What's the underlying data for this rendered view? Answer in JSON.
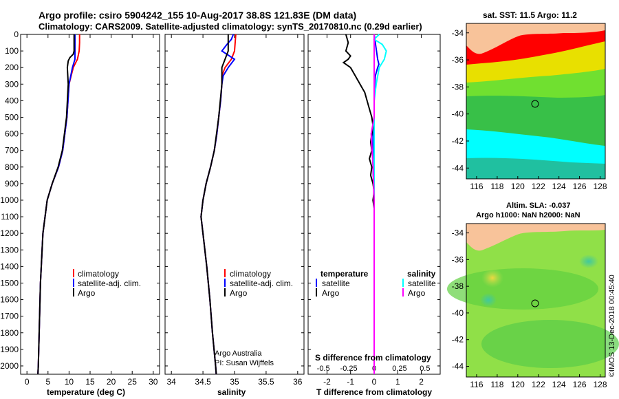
{
  "header": {
    "line1": "Argo profile: csiro 5904242_155 10-Aug-2017 38.8S 121.83E (DM data)",
    "line2": "Climatology: CARS2009. Satellite-adjusted climatology: synTS_20170810.nc (0.29d earlier)"
  },
  "credit": "©IMOS 13-Dec-2018 00:45:40",
  "depth_ticks": [
    "0",
    "100",
    "200",
    "300",
    "400",
    "500",
    "600",
    "700",
    "800",
    "900",
    "1000",
    "1100",
    "1200",
    "1300",
    "1400",
    "1500",
    "1600",
    "1700",
    "1800",
    "1900",
    "2000"
  ],
  "legend": {
    "climatology": "climatology",
    "satellite_adj": "satellite-adj. clim.",
    "argo": "Argo",
    "temperature": "temperature",
    "salinity": "salinity",
    "satellite": "satellite"
  },
  "salinity_note": [
    "Argo Australia",
    "PI: Susan Wijffels"
  ],
  "map_top": {
    "title": "sat. SST: 11.5 Argo: 11.2",
    "lat_ticks": [
      "-34",
      "-36",
      "-38",
      "-40",
      "-42",
      "-44"
    ],
    "lon_ticks": [
      "116",
      "118",
      "120",
      "122",
      "124",
      "126",
      "128"
    ]
  },
  "map_bottom": {
    "title1": "Altim. SLA: -0.037",
    "title2": "Argo h1000: NaN h2000: NaN",
    "lat_ticks": [
      "-34",
      "-36",
      "-38",
      "-40",
      "-42",
      "-44"
    ],
    "lon_ticks": [
      "116",
      "118",
      "120",
      "122",
      "124",
      "126",
      "128"
    ]
  },
  "colors": {
    "climatology": "#ff0000",
    "satellite": "#0000ff",
    "argo": "#000000",
    "salinity_satellite": "#00ffff",
    "salinity_argo": "#ff00ff",
    "land": "#f8c39a"
  },
  "chart_data": [
    {
      "type": "line",
      "xlabel": "temperature (deg C)",
      "ylim": [
        2050,
        0
      ],
      "xlim": [
        -1.5,
        31.5
      ],
      "xticks": [
        "0",
        "5",
        "10",
        "15",
        "20",
        "25",
        "30"
      ],
      "series": [
        {
          "name": "climatology",
          "depth": [
            0,
            50,
            100,
            150,
            200,
            300,
            500,
            700,
            800,
            900,
            1000,
            1200,
            1500,
            2000,
            2050
          ],
          "values": [
            12.5,
            12.5,
            12.4,
            12.0,
            11.0,
            10.0,
            9.5,
            8.5,
            7.5,
            6.0,
            4.8,
            3.8,
            3.2,
            2.7,
            2.6
          ]
        },
        {
          "name": "satellite-adj. clim.",
          "depth": [
            0,
            50,
            100,
            150,
            200,
            300,
            500,
            700,
            800,
            900,
            1000,
            1200,
            1500,
            2000,
            2050
          ],
          "values": [
            11.4,
            11.4,
            11.4,
            11.4,
            10.8,
            10.0,
            9.5,
            8.5,
            7.5,
            6.0,
            4.8,
            3.8,
            3.2,
            2.7,
            2.6
          ]
        },
        {
          "name": "Argo",
          "depth": [
            0,
            50,
            100,
            120,
            140,
            160,
            200,
            300,
            500,
            700,
            800,
            900,
            1000,
            1200,
            1500,
            2000,
            2050
          ],
          "values": [
            11.2,
            11.2,
            11.2,
            11.0,
            10.2,
            9.8,
            9.6,
            9.8,
            9.4,
            8.4,
            7.4,
            6.0,
            4.8,
            3.8,
            3.2,
            2.7,
            2.6
          ]
        }
      ]
    },
    {
      "type": "line",
      "xlabel": "salinity",
      "ylim": [
        2050,
        0
      ],
      "xlim": [
        33.9,
        36.1
      ],
      "xticks": [
        "34",
        "34.5",
        "35",
        "35.5",
        "36"
      ],
      "series": [
        {
          "name": "climatology",
          "depth": [
            0,
            100,
            150,
            200,
            250,
            300,
            400,
            500,
            600,
            700,
            800,
            900,
            1000,
            1100,
            1200,
            1400,
            1600,
            1800,
            2000,
            2050
          ],
          "values": [
            35.02,
            35.0,
            34.95,
            34.85,
            34.8,
            34.8,
            34.78,
            34.75,
            34.72,
            34.68,
            34.62,
            34.55,
            34.5,
            34.47,
            34.5,
            34.56,
            34.61,
            34.65,
            34.7,
            34.71
          ]
        },
        {
          "name": "satellite-adj. clim.",
          "depth": [
            0,
            30,
            60,
            100,
            150,
            200,
            250,
            300,
            400,
            500,
            600,
            700,
            800,
            900,
            1000,
            1100,
            1200,
            1400,
            1600,
            1800,
            2000,
            2050
          ],
          "values": [
            34.98,
            34.95,
            34.88,
            34.8,
            35.0,
            34.9,
            34.82,
            34.8,
            34.78,
            34.75,
            34.72,
            34.68,
            34.62,
            34.55,
            34.5,
            34.47,
            34.5,
            34.56,
            34.61,
            34.65,
            34.7,
            34.71
          ]
        },
        {
          "name": "Argo",
          "depth": [
            0,
            50,
            100,
            150,
            200,
            300,
            500,
            700,
            800,
            900,
            1000,
            1100,
            1200,
            1400,
            1600,
            1800,
            2000,
            2050
          ],
          "values": [
            34.9,
            34.9,
            34.9,
            34.85,
            34.8,
            34.8,
            34.75,
            34.68,
            34.62,
            34.55,
            34.5,
            34.47,
            34.5,
            34.56,
            34.61,
            34.65,
            34.7,
            34.71
          ]
        }
      ]
    },
    {
      "type": "line",
      "xlabel": "T difference from climatology",
      "secondary_xlabel": "S difference from climatology",
      "ylim": [
        2050,
        0
      ],
      "xlim": [
        -2.8,
        2.8
      ],
      "xticks": [
        "-2",
        "-1",
        "0",
        "1",
        "2"
      ],
      "secondary_xticks": [
        "-0.5",
        "-0.25",
        "0",
        "0.25",
        "0.5"
      ],
      "series": [
        {
          "name": "temperature satellite",
          "depth": [
            0,
            50,
            100,
            150,
            180,
            200,
            250,
            300,
            400,
            500,
            600,
            800,
            1000,
            1200,
            1500,
            2000,
            2050
          ],
          "values": [
            0,
            0.05,
            0.1,
            0.15,
            0.2,
            0.15,
            0.05,
            0.02,
            0,
            0,
            -0.05,
            -0.05,
            0,
            0,
            0,
            0,
            0
          ]
        },
        {
          "name": "temperature Argo",
          "depth": [
            0,
            50,
            100,
            130,
            150,
            170,
            200,
            250,
            300,
            350,
            400,
            450,
            500,
            550,
            600,
            650,
            700,
            750,
            800,
            850,
            900,
            950,
            1000,
            1050,
            1100,
            1200,
            1500,
            2000,
            2050
          ],
          "values": [
            -1.2,
            -1.1,
            -1.2,
            -1.0,
            -1.1,
            -1.3,
            -1.0,
            -0.8,
            -0.6,
            -0.4,
            -0.3,
            -0.2,
            -0.1,
            -0.05,
            -0.1,
            -0.15,
            -0.1,
            -0.2,
            -0.1,
            -0.15,
            -0.05,
            0,
            -0.05,
            0,
            0,
            0,
            0,
            0,
            0
          ]
        },
        {
          "name": "salinity satellite",
          "depth": [
            0,
            30,
            60,
            100,
            150,
            200,
            300,
            400,
            600,
            800,
            1000,
            1500,
            2000,
            2050
          ],
          "values": [
            0.05,
            0.0,
            0.08,
            0.12,
            0.1,
            0.05,
            0.02,
            0.0,
            0.0,
            0.0,
            0.0,
            0.0,
            0.0,
            0.0
          ]
        },
        {
          "name": "salinity Argo",
          "depth": [
            0,
            100,
            200,
            300,
            500,
            600,
            700,
            800,
            1000,
            1500,
            2000,
            2050
          ],
          "values": [
            0.0,
            0.0,
            0.0,
            0.0,
            0.0,
            -0.03,
            -0.02,
            -0.01,
            0.0,
            0.0,
            0.0,
            0.0
          ]
        }
      ]
    }
  ]
}
